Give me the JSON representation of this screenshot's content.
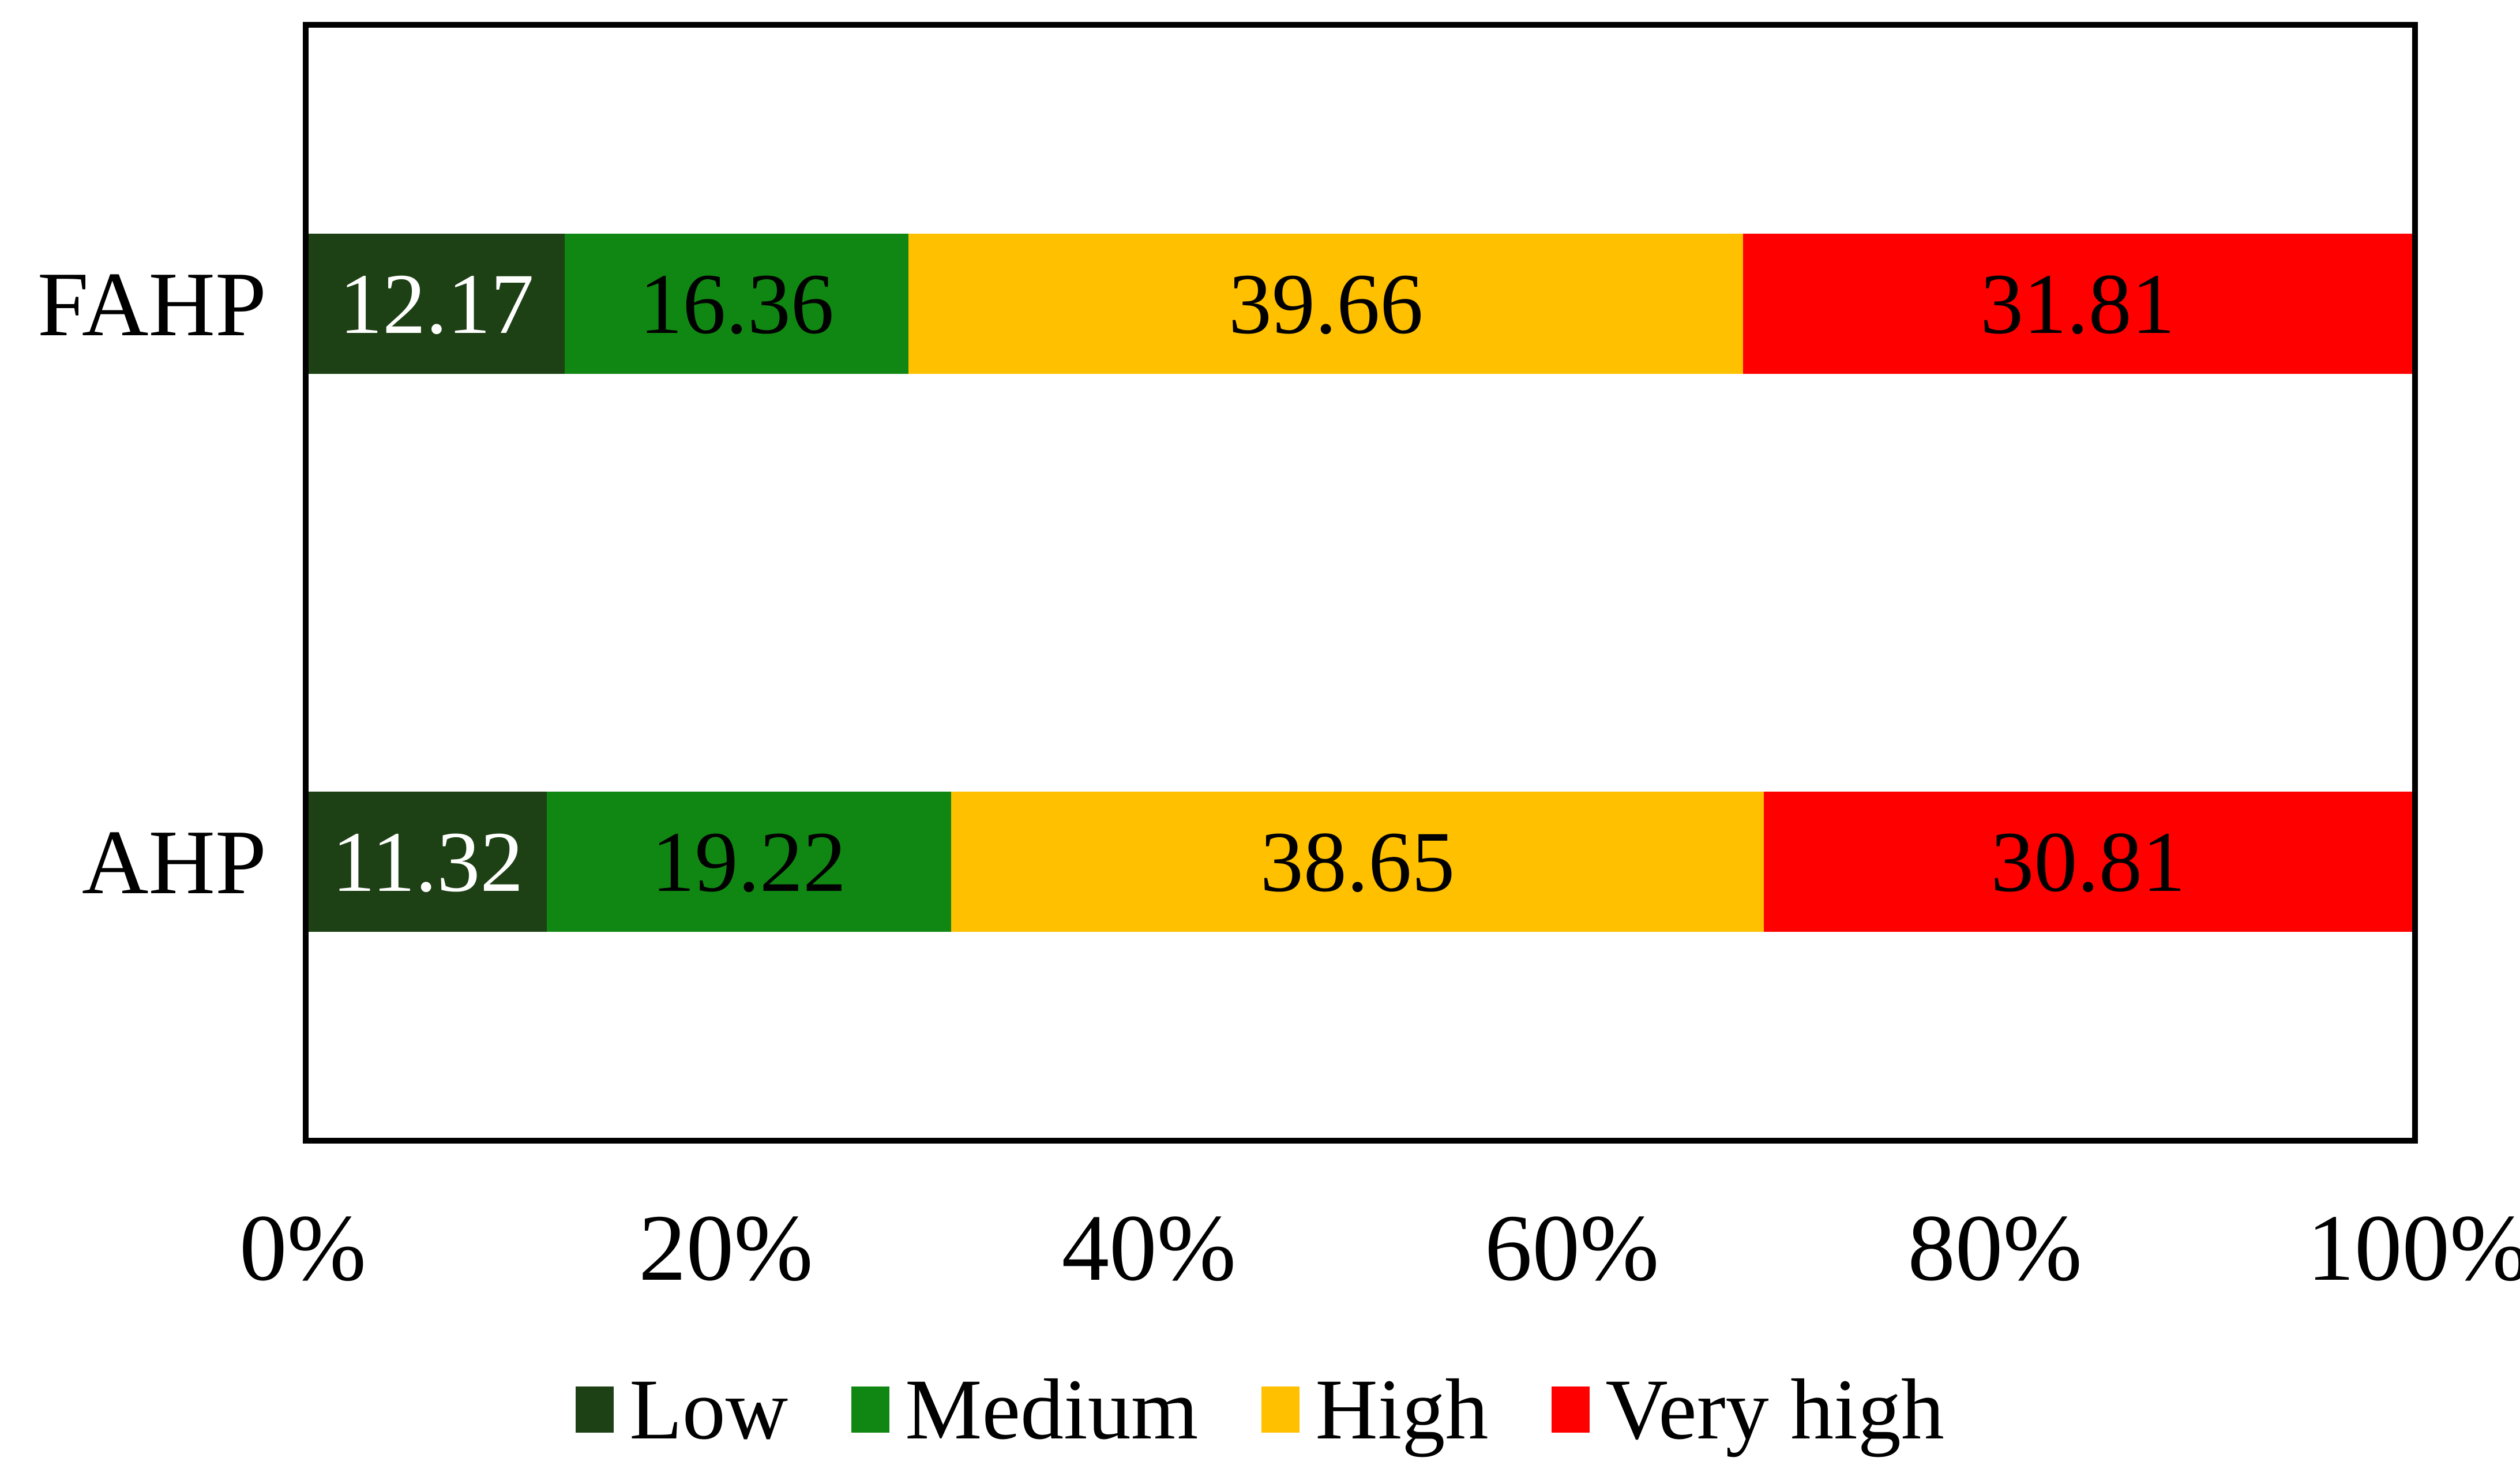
{
  "figure": {
    "background": "#ffffff",
    "border_color": "#000000",
    "text_color": "#000000"
  },
  "chart_data": {
    "type": "bar",
    "orientation": "horizontal",
    "stacked": true,
    "title": "",
    "xlabel": "",
    "ylabel": "",
    "categories": [
      "FAHP",
      "AHP"
    ],
    "series": [
      {
        "name": "Low",
        "color": "#1d4014",
        "label_color": "#ffffff",
        "values": [
          12.17,
          11.32
        ]
      },
      {
        "name": "Medium",
        "color": "#108712",
        "label_color": "#000000",
        "values": [
          16.36,
          19.22
        ]
      },
      {
        "name": "High",
        "color": "#ffc000",
        "label_color": "#000000",
        "values": [
          39.66,
          38.65
        ]
      },
      {
        "name": "Very high",
        "color": "#ff0000",
        "label_color": "#000000",
        "values": [
          31.81,
          30.81
        ]
      }
    ],
    "x_axis": {
      "min": 0,
      "max": 100,
      "ticks": [
        "0%",
        "20%",
        "40%",
        "60%",
        "80%",
        "100%"
      ],
      "grid": false
    },
    "legend": {
      "position": "bottom",
      "items": [
        "Low",
        "Medium",
        "High",
        "Very high"
      ]
    }
  }
}
